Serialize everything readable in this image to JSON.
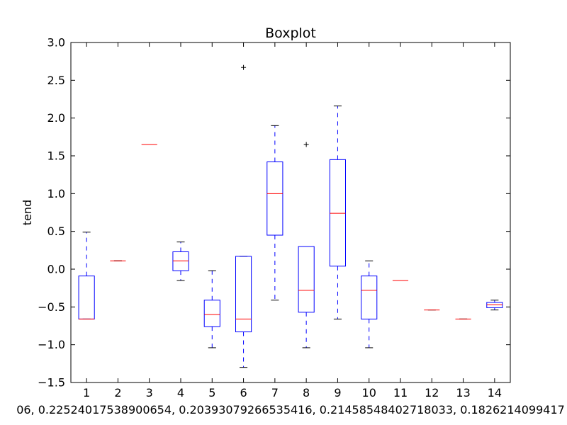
{
  "chart_data": {
    "type": "boxplot",
    "title": "Boxplot",
    "xlabel": "06, 0.2252401753890065​4, 0.20393079266535416, 0.21458548402718033, 0.1826214099417",
    "ylabel": "tend",
    "ylim": [
      -1.5,
      3.0
    ],
    "yticks": [
      "−1.5",
      "−1.0",
      "−0.5",
      "0.0",
      "0.5",
      "1.0",
      "1.5",
      "2.0",
      "2.5",
      "3.0"
    ],
    "ytick_values": [
      -1.5,
      -1.0,
      -0.5,
      0.0,
      0.5,
      1.0,
      1.5,
      2.0,
      2.5,
      3.0
    ],
    "categories": [
      "1",
      "2",
      "3",
      "4",
      "5",
      "6",
      "7",
      "8",
      "9",
      "10",
      "11",
      "12",
      "13",
      "14"
    ],
    "boxes": [
      {
        "label": "1",
        "whislo": -0.66,
        "q1": -0.66,
        "med": -0.66,
        "q3": -0.09,
        "whishi": 0.49,
        "fliers": []
      },
      {
        "label": "2",
        "whislo": 0.11,
        "q1": 0.11,
        "med": 0.11,
        "q3": 0.11,
        "whishi": 0.11,
        "fliers": []
      },
      {
        "label": "3",
        "whislo": 1.65,
        "q1": 1.65,
        "med": 1.65,
        "q3": 1.65,
        "whishi": 1.65,
        "fliers": []
      },
      {
        "label": "4",
        "whislo": -0.15,
        "q1": -0.02,
        "med": 0.11,
        "q3": 0.23,
        "whishi": 0.36,
        "fliers": []
      },
      {
        "label": "5",
        "whislo": -1.04,
        "q1": -0.76,
        "med": -0.6,
        "q3": -0.41,
        "whishi": -0.02,
        "fliers": []
      },
      {
        "label": "6",
        "whislo": -1.3,
        "q1": -0.83,
        "med": -0.66,
        "q3": 0.17,
        "whishi": 0.17,
        "fliers": [
          2.67
        ]
      },
      {
        "label": "7",
        "whislo": -0.41,
        "q1": 0.45,
        "med": 1.0,
        "q3": 1.42,
        "whishi": 1.9,
        "fliers": []
      },
      {
        "label": "8",
        "whislo": -1.04,
        "q1": -0.57,
        "med": -0.28,
        "q3": 0.3,
        "whishi": 0.3,
        "fliers": [
          1.65
        ]
      },
      {
        "label": "9",
        "whislo": -0.66,
        "q1": 0.04,
        "med": 0.74,
        "q3": 1.45,
        "whishi": 2.16,
        "fliers": []
      },
      {
        "label": "10",
        "whislo": -1.04,
        "q1": -0.66,
        "med": -0.28,
        "q3": -0.09,
        "whishi": 0.11,
        "fliers": []
      },
      {
        "label": "11",
        "whislo": -0.15,
        "q1": -0.15,
        "med": -0.15,
        "q3": -0.15,
        "whishi": -0.15,
        "fliers": []
      },
      {
        "label": "12",
        "whislo": -0.54,
        "q1": -0.54,
        "med": -0.54,
        "q3": -0.54,
        "whishi": -0.54,
        "fliers": []
      },
      {
        "label": "13",
        "whislo": -0.66,
        "q1": -0.66,
        "med": -0.66,
        "q3": -0.66,
        "whishi": -0.66,
        "fliers": []
      },
      {
        "label": "14",
        "whislo": -0.54,
        "q1": -0.51,
        "med": -0.47,
        "q3": -0.44,
        "whishi": -0.41,
        "fliers": []
      }
    ],
    "colors": {
      "box": "#0000ff",
      "median": "#ff0000",
      "flier": "#000000"
    },
    "grid": false,
    "legend": "none"
  }
}
